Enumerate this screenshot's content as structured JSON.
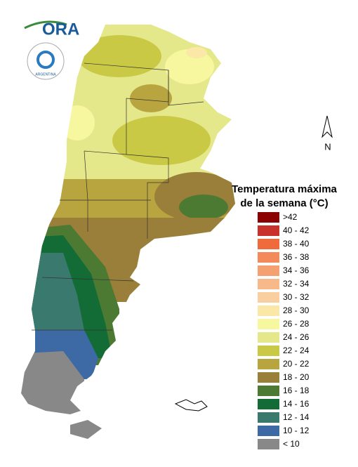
{
  "logo": {
    "text": "ORA",
    "seal": "ARGENTINA"
  },
  "north": "N",
  "legend": {
    "title": [
      "Temperatura máxima",
      "de la semana (°C)"
    ],
    "items": [
      {
        "label": ">42",
        "color": "#8b0000"
      },
      {
        "label": "40 - 42",
        "color": "#c8322a"
      },
      {
        "label": "38 - 40",
        "color": "#f06b3c"
      },
      {
        "label": "36 - 38",
        "color": "#f28a5a"
      },
      {
        "label": "34 - 36",
        "color": "#f5a070"
      },
      {
        "label": "32 - 34",
        "color": "#f7b98a"
      },
      {
        "label": "30 - 32",
        "color": "#f9cfa0"
      },
      {
        "label": "28 - 30",
        "color": "#fbe8a6"
      },
      {
        "label": "26 - 28",
        "color": "#f7f7a0"
      },
      {
        "label": "24 - 26",
        "color": "#e4e88a"
      },
      {
        "label": "22 - 24",
        "color": "#c9c945"
      },
      {
        "label": "20 - 22",
        "color": "#b8a53f"
      },
      {
        "label": "18 - 20",
        "color": "#9a7f3a"
      },
      {
        "label": "16 - 18",
        "color": "#4d7a33"
      },
      {
        "label": "14 - 16",
        "color": "#136b35"
      },
      {
        "label": "12 - 14",
        "color": "#3a7a6e"
      },
      {
        "label": "10 - 12",
        "color": "#3d6aa5"
      },
      {
        "label": "< 10",
        "color": "#888888"
      }
    ]
  }
}
